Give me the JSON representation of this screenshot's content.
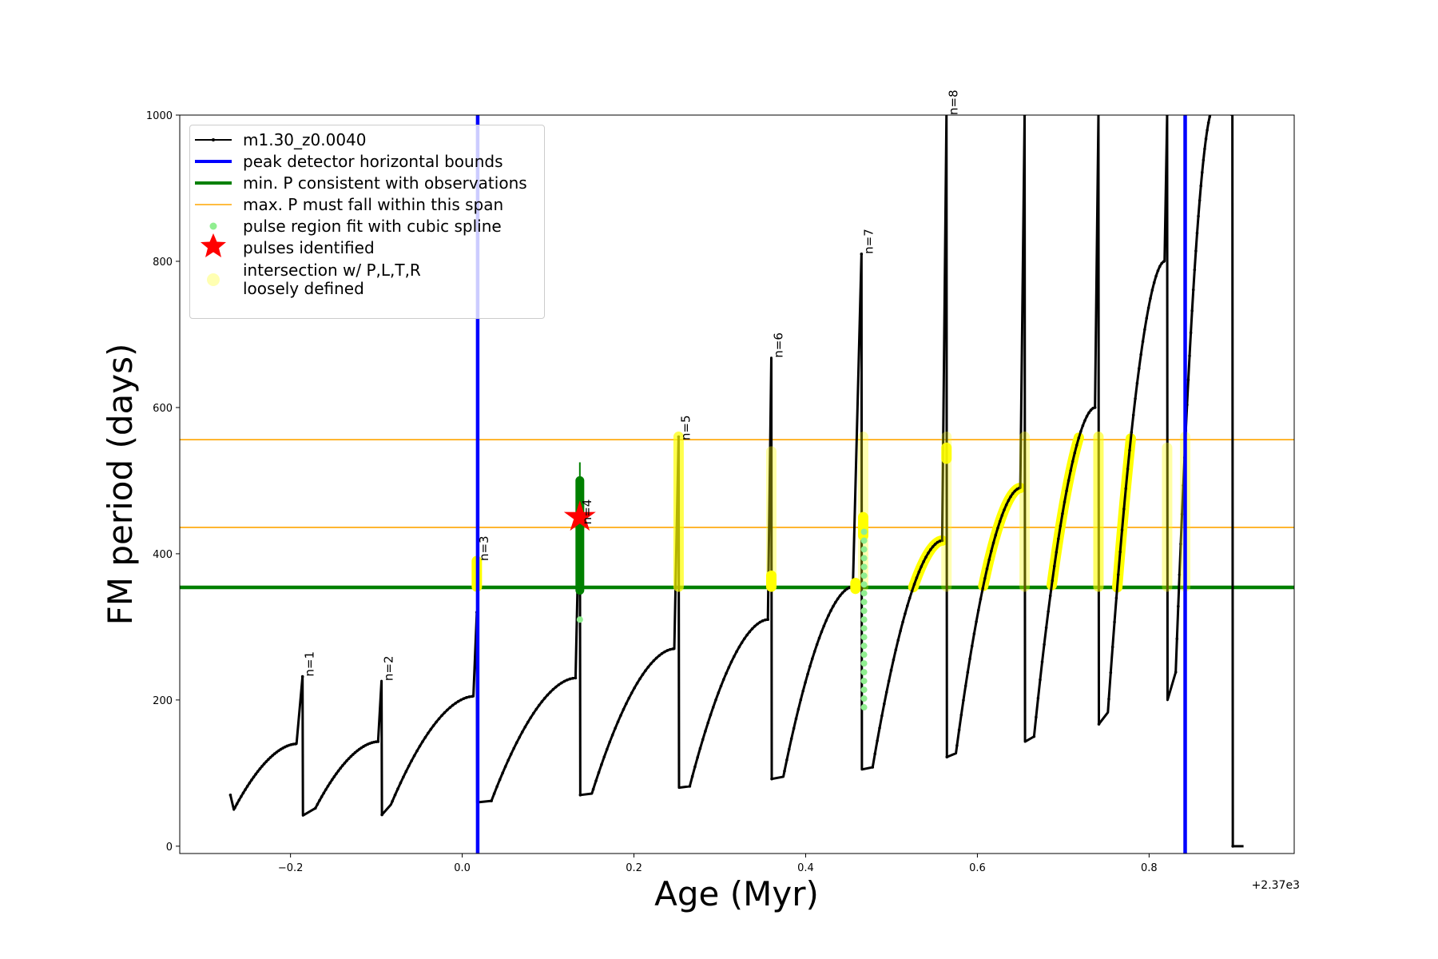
{
  "chart_data": {
    "type": "line",
    "xlabel": "Age (Myr)",
    "ylabel": "FM period (days)",
    "x_offset_label": "+2.37e3",
    "xlim": [
      -0.329,
      0.969
    ],
    "ylim": [
      -10,
      1000
    ],
    "grid": false,
    "xticks": [
      -0.2,
      0.0,
      0.2,
      0.4,
      0.6,
      0.8
    ],
    "xtick_labels": [
      "−0.2",
      "0.0",
      "0.2",
      "0.4",
      "0.6",
      "0.8"
    ],
    "yticks": [
      0,
      200,
      400,
      600,
      800,
      1000
    ],
    "ytick_labels": [
      "0",
      "200",
      "400",
      "600",
      "800",
      "1000"
    ],
    "colors": {
      "track": "#000000",
      "blue": "#0000ff",
      "green": "#008000",
      "orange": "#ffa500",
      "lightgreen": "#90ee90",
      "star": "#ff0000",
      "yellow": "#ffff00"
    },
    "legend": {
      "position": "upper-left",
      "entries": [
        {
          "label": "m1.30_z0.0040",
          "style": "line-marker"
        },
        {
          "label": "peak detector horizontal bounds",
          "style": "blue-line"
        },
        {
          "label": "min. P consistent with observations",
          "style": "green-line"
        },
        {
          "label": "max. P must fall within this span",
          "style": "orange-line"
        },
        {
          "label": "pulse region fit with cubic spline",
          "style": "lightgreen-dot"
        },
        {
          "label": "pulses identified",
          "style": "red-star"
        },
        {
          "label": "intersection w/ P,L,T,R",
          "label2": "loosely defined",
          "style": "yellow-dot"
        }
      ]
    },
    "track": {
      "name": "m1.30_z0.0040",
      "start": [
        -0.27,
        70
      ],
      "arcs": [
        {
          "from": [
            -0.266,
            50
          ],
          "to": [
            -0.193,
            140
          ],
          "spike": {
            "x": -0.186,
            "top": 232,
            "bottom": 42
          }
        },
        {
          "from": [
            -0.171,
            52
          ],
          "to": [
            -0.098,
            143
          ],
          "spike": {
            "x": -0.094,
            "top": 226,
            "bottom": 43
          }
        },
        {
          "from": [
            -0.083,
            57
          ],
          "to": [
            0.013,
            205
          ],
          "spike": {
            "x": 0.017,
            "top": 320,
            "bottom": 60
          }
        },
        {
          "from": [
            0.034,
            62
          ],
          "to": [
            0.132,
            230
          ],
          "spike": {
            "x": 0.137,
            "top": 500,
            "bottom": 70
          }
        },
        {
          "from": [
            0.151,
            72
          ],
          "to": [
            0.247,
            270
          ],
          "spike": {
            "x": 0.252,
            "top": 560,
            "bottom": 80
          }
        },
        {
          "from": [
            0.265,
            82
          ],
          "to": [
            0.356,
            310
          ],
          "spike": {
            "x": 0.36,
            "top": 668,
            "bottom": 92
          }
        },
        {
          "from": [
            0.374,
            95
          ],
          "to": [
            0.455,
            355
          ],
          "spike": {
            "x": 0.465,
            "top": 810,
            "bottom": 105
          }
        },
        {
          "from": [
            0.478,
            108
          ],
          "to": [
            0.559,
            418
          ],
          "spike": {
            "x": 0.564,
            "top": 1000,
            "bottom": 122
          }
        },
        {
          "from": [
            0.575,
            127
          ],
          "to": [
            0.65,
            490
          ],
          "spike": {
            "x": 0.655,
            "top": 1000,
            "bottom": 143
          }
        },
        {
          "from": [
            0.666,
            150
          ],
          "to": [
            0.737,
            600
          ],
          "spike": {
            "x": 0.741,
            "top": 1000,
            "bottom": 167
          }
        },
        {
          "from": [
            0.752,
            183
          ],
          "to": [
            0.818,
            800
          ],
          "spike": {
            "x": 0.821,
            "top": 1000,
            "bottom": 200
          }
        },
        {
          "from": [
            0.831,
            238
          ],
          "to": [
            0.875,
            1010
          ],
          "spike": {
            "x": 0.897,
            "top": 1000,
            "bottom": 0
          }
        }
      ],
      "end": [
        0.91,
        0
      ]
    },
    "peak_detector_bounds_x": [
      0.018,
      0.842
    ],
    "min_period": 354,
    "max_period_span": [
      436,
      556
    ],
    "pulse_labels": [
      {
        "text": "n=1",
        "x": -0.186,
        "y": 232
      },
      {
        "text": "n=2",
        "x": -0.094,
        "y": 226
      },
      {
        "text": "n=3",
        "x": 0.017,
        "y": 390
      },
      {
        "text": "n=4",
        "x": 0.137,
        "y": 440
      },
      {
        "text": "n=5",
        "x": 0.252,
        "y": 555
      },
      {
        "text": "n=6",
        "x": 0.36,
        "y": 668
      },
      {
        "text": "n=7",
        "x": 0.465,
        "y": 810
      },
      {
        "text": "n=8",
        "x": 0.564,
        "y": 1000
      }
    ],
    "pulse_identified": {
      "x": 0.137,
      "y": 450
    },
    "spline_fit_regions": [
      {
        "x": 0.137,
        "y0": 350,
        "y1": 500,
        "strong": true
      },
      {
        "x": 0.467,
        "y0": 190,
        "y1": 440,
        "strong": false
      }
    ],
    "intersection_bands": [
      {
        "x": 0.017,
        "y0": 355,
        "y1": 390,
        "alpha": 1.0
      },
      {
        "x": 0.252,
        "y0": 355,
        "y1": 560,
        "alpha": 0.7
      },
      {
        "x": 0.36,
        "y0": 355,
        "y1": 540,
        "alpha": 0.35
      },
      {
        "x": 0.36,
        "y0": 355,
        "y1": 370,
        "alpha": 1.0
      },
      {
        "x": 0.467,
        "y0": 355,
        "y1": 560,
        "alpha": 0.3
      },
      {
        "x": 0.467,
        "y0": 425,
        "y1": 450,
        "alpha": 1.0
      },
      {
        "x": 0.564,
        "y0": 355,
        "y1": 560,
        "alpha": 0.3
      },
      {
        "x": 0.564,
        "y0": 530,
        "y1": 545,
        "alpha": 0.9
      },
      {
        "x": 0.655,
        "y0": 355,
        "y1": 560,
        "alpha": 0.35
      },
      {
        "x": 0.741,
        "y0": 355,
        "y1": 560,
        "alpha": 0.6
      },
      {
        "x": 0.821,
        "y0": 355,
        "y1": 545,
        "alpha": 0.35
      },
      {
        "x": 0.842,
        "y0": 355,
        "y1": 560,
        "alpha": 0.35
      },
      {
        "x": 0.458,
        "y0": 352,
        "y1": 360,
        "alpha": 1.0
      }
    ],
    "yellow_arc_indices": [
      7,
      8,
      9,
      10
    ]
  }
}
